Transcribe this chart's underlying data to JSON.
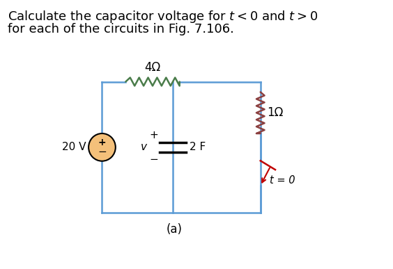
{
  "title_line1": "Calculate the capacitor voltage for $t < 0$ and $t > 0$",
  "title_line2": "for each of the circuits in Fig. 7.106.",
  "label_a": "(a)",
  "resistor_top_label": "4Ω",
  "resistor_right_label": "1Ω",
  "capacitor_label": "2 F",
  "voltage_label": "20 V",
  "switch_label": "t = 0",
  "v_label": "v",
  "plus_label": "+",
  "minus_label": "−",
  "wire_color": "#5b9bd5",
  "resistor_color_top": "#4a7c4a",
  "resistor_color_right": "#8b4040",
  "switch_color": "#c00000",
  "source_fill": "#f4c07a",
  "bg_color": "#ffffff",
  "title_fontsize": 13,
  "circuit_lw": 1.8
}
